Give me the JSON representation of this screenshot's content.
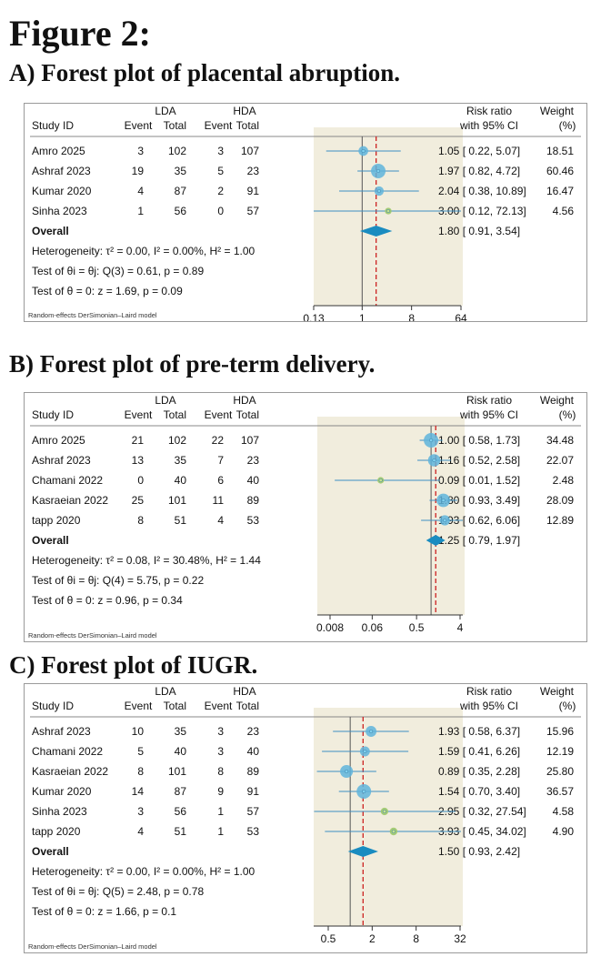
{
  "figure_title": "Figure 2:",
  "footnote": "Random-effects DerSimonian–Laird model",
  "header": {
    "study_id": "Study ID",
    "lda": "LDA",
    "hda": "HDA",
    "event": "Event",
    "total": "Total",
    "rr_line1": "Risk ratio",
    "rr_line2": "with 95% CI",
    "weight_line1": "Weight",
    "weight_line2": "(%)"
  },
  "overall_label": "Overall",
  "colors": {
    "plot_bg": "#f1eddd",
    "ci_line": "#3d8fc4",
    "marker": "#5fb4dc",
    "diamond": "#1a8cc0",
    "dashed": "#cc2020",
    "small_marker": "#9cc86a"
  },
  "chart_data": [
    {
      "type": "forest",
      "title": "A) Forest plot of placental abruption.",
      "x_scale": "log",
      "x_ticks": [
        "0.13",
        "1",
        "8",
        "64"
      ],
      "xlim": [
        0.13,
        64
      ],
      "studies": [
        {
          "name": "Amro 2025",
          "lda_event": 3,
          "lda_total": 102,
          "hda_event": 3,
          "hda_total": 107,
          "rr": 1.05,
          "lo": 0.22,
          "hi": 5.07,
          "ci_text": "1.05 [ 0.22,   5.07]",
          "weight": "18.51"
        },
        {
          "name": "Ashraf 2023",
          "lda_event": 19,
          "lda_total": 35,
          "hda_event": 5,
          "hda_total": 23,
          "rr": 1.97,
          "lo": 0.82,
          "hi": 4.72,
          "ci_text": "1.97 [ 0.82,   4.72]",
          "weight": "60.46"
        },
        {
          "name": "Kumar 2020",
          "lda_event": 4,
          "lda_total": 87,
          "hda_event": 2,
          "hda_total": 91,
          "rr": 2.04,
          "lo": 0.38,
          "hi": 10.89,
          "ci_text": "2.04 [ 0.38, 10.89]",
          "weight": "16.47"
        },
        {
          "name": "Sinha 2023",
          "lda_event": 1,
          "lda_total": 56,
          "hda_event": 0,
          "hda_total": 57,
          "rr": 3.0,
          "lo": 0.12,
          "hi": 72.13,
          "ci_text": "3.00 [ 0.12, 72.13]",
          "weight": "4.56"
        }
      ],
      "overall": {
        "rr": 1.8,
        "lo": 0.91,
        "hi": 3.54,
        "ci_text": "1.80 [ 0.91,   3.54]"
      },
      "stats": [
        "Heterogeneity: τ² = 0.00, I² = 0.00%, H² = 1.00",
        "Test of θi = θj: Q(3) = 0.61, p = 0.89",
        "Test of θ = 0: z = 1.69, p = 0.09"
      ]
    },
    {
      "type": "forest",
      "title": "B) Forest plot of pre-term delivery.",
      "x_scale": "log",
      "x_ticks": [
        "0.008",
        "0.06",
        "0.5",
        "4"
      ],
      "xlim": [
        0.008,
        4
      ],
      "studies": [
        {
          "name": "Amro 2025",
          "lda_event": 21,
          "lda_total": 102,
          "hda_event": 22,
          "hda_total": 107,
          "rr": 1.0,
          "lo": 0.58,
          "hi": 1.73,
          "ci_text": "1.00 [ 0.58, 1.73]",
          "weight": "34.48"
        },
        {
          "name": "Ashraf 2023",
          "lda_event": 13,
          "lda_total": 35,
          "hda_event": 7,
          "hda_total": 23,
          "rr": 1.16,
          "lo": 0.52,
          "hi": 2.58,
          "ci_text": "1.16 [ 0.52, 2.58]",
          "weight": "22.07"
        },
        {
          "name": "Chamani 2022",
          "lda_event": 0,
          "lda_total": 40,
          "hda_event": 6,
          "hda_total": 40,
          "rr": 0.09,
          "lo": 0.01,
          "hi": 1.52,
          "ci_text": "0.09 [ 0.01, 1.52]",
          "weight": "2.48"
        },
        {
          "name": "Kasraeian 2022",
          "lda_event": 25,
          "lda_total": 101,
          "hda_event": 11,
          "hda_total": 89,
          "rr": 1.8,
          "lo": 0.93,
          "hi": 3.49,
          "ci_text": "1.80 [ 0.93, 3.49]",
          "weight": "28.09"
        },
        {
          "name": "tapp 2020",
          "lda_event": 8,
          "lda_total": 51,
          "hda_event": 4,
          "hda_total": 53,
          "rr": 1.93,
          "lo": 0.62,
          "hi": 6.06,
          "ci_text": "1.93 [ 0.62, 6.06]",
          "weight": "12.89"
        }
      ],
      "overall": {
        "rr": 1.25,
        "lo": 0.79,
        "hi": 1.97,
        "ci_text": "1.25 [ 0.79, 1.97]"
      },
      "stats": [
        "Heterogeneity: τ² = 0.08, I² = 30.48%, H² = 1.44",
        "Test of θi = θj: Q(4) = 5.75, p = 0.22",
        "Test of θ = 0: z = 0.96, p = 0.34"
      ]
    },
    {
      "type": "forest",
      "title": "C) Forest plot of IUGR.",
      "x_scale": "log",
      "x_ticks": [
        "0.5",
        "2",
        "8",
        "32"
      ],
      "xlim": [
        0.35,
        32
      ],
      "studies": [
        {
          "name": "Ashraf 2023",
          "lda_event": 10,
          "lda_total": 35,
          "hda_event": 3,
          "hda_total": 23,
          "rr": 1.93,
          "lo": 0.58,
          "hi": 6.37,
          "ci_text": "1.93 [ 0.58,   6.37]",
          "weight": "15.96"
        },
        {
          "name": "Chamani 2022",
          "lda_event": 5,
          "lda_total": 40,
          "hda_event": 3,
          "hda_total": 40,
          "rr": 1.59,
          "lo": 0.41,
          "hi": 6.26,
          "ci_text": "1.59 [ 0.41,   6.26]",
          "weight": "12.19"
        },
        {
          "name": "Kasraeian 2022",
          "lda_event": 8,
          "lda_total": 101,
          "hda_event": 8,
          "hda_total": 89,
          "rr": 0.89,
          "lo": 0.35,
          "hi": 2.28,
          "ci_text": "0.89 [ 0.35,   2.28]",
          "weight": "25.80"
        },
        {
          "name": "Kumar 2020",
          "lda_event": 14,
          "lda_total": 87,
          "hda_event": 9,
          "hda_total": 91,
          "rr": 1.54,
          "lo": 0.7,
          "hi": 3.4,
          "ci_text": "1.54 [ 0.70,   3.40]",
          "weight": "36.57"
        },
        {
          "name": "Sinha 2023",
          "lda_event": 3,
          "lda_total": 56,
          "hda_event": 1,
          "hda_total": 57,
          "rr": 2.95,
          "lo": 0.32,
          "hi": 27.54,
          "ci_text": "2.95 [ 0.32, 27.54]",
          "weight": "4.58"
        },
        {
          "name": "tapp 2020",
          "lda_event": 4,
          "lda_total": 51,
          "hda_event": 1,
          "hda_total": 53,
          "rr": 3.93,
          "lo": 0.45,
          "hi": 34.02,
          "ci_text": "3.93 [ 0.45, 34.02]",
          "weight": "4.90"
        }
      ],
      "overall": {
        "rr": 1.5,
        "lo": 0.93,
        "hi": 2.42,
        "ci_text": "1.50 [ 0.93,   2.42]"
      },
      "stats": [
        "Heterogeneity: τ² = 0.00, I² = 0.00%, H² = 1.00",
        "Test of θi = θj: Q(5) = 2.48, p = 0.78",
        "Test of θ = 0: z = 1.66, p = 0.1"
      ]
    }
  ]
}
